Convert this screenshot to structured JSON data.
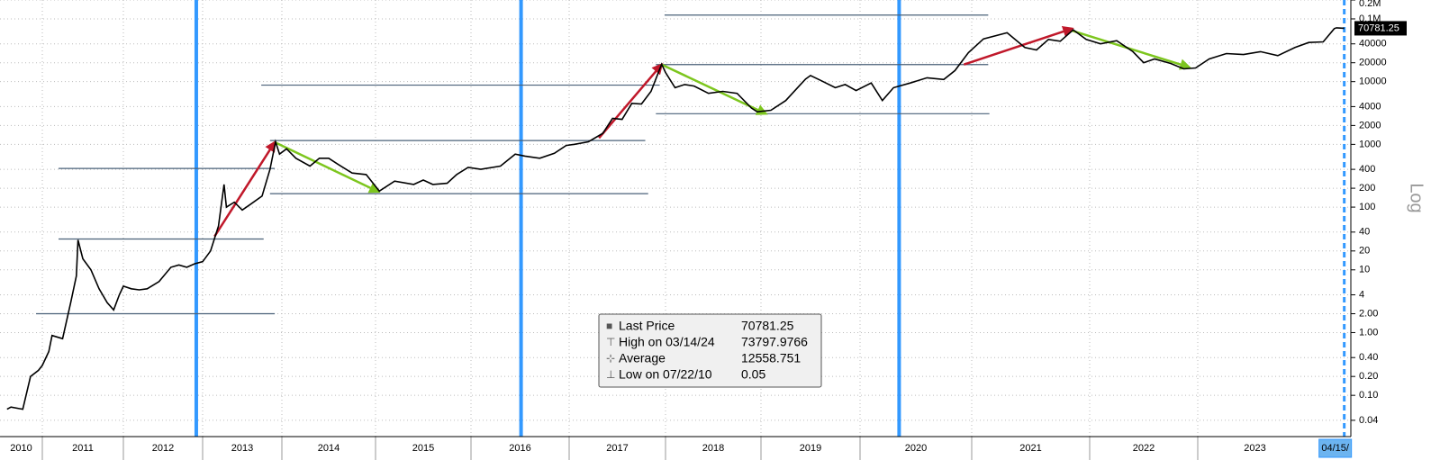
{
  "chart_data": {
    "type": "line",
    "log_scale": true,
    "grid": true,
    "x": [
      2010.55,
      2010.6,
      2010.75,
      2010.85,
      2010.95,
      2011.0,
      2011.08,
      2011.12,
      2011.25,
      2011.35,
      2011.42,
      2011.44,
      2011.5,
      2011.6,
      2011.7,
      2011.8,
      2011.88,
      2011.95,
      2012.0,
      2012.1,
      2012.2,
      2012.3,
      2012.45,
      2012.6,
      2012.7,
      2012.8,
      2012.9,
      2013.0,
      2013.1,
      2013.2,
      2013.27,
      2013.3,
      2013.4,
      2013.5,
      2013.6,
      2013.75,
      2013.85,
      2013.92,
      2013.97,
      2014.05,
      2014.15,
      2014.3,
      2014.4,
      2014.5,
      2014.6,
      2014.75,
      2014.9,
      2015.04,
      2015.2,
      2015.4,
      2015.5,
      2015.6,
      2015.75,
      2015.85,
      2015.97,
      2016.1,
      2016.3,
      2016.45,
      2016.55,
      2016.7,
      2016.85,
      2016.97,
      2017.05,
      2017.2,
      2017.35,
      2017.45,
      2017.55,
      2017.65,
      2017.75,
      2017.85,
      2017.96,
      2018.0,
      2018.1,
      2018.2,
      2018.3,
      2018.45,
      2018.6,
      2018.75,
      2018.9,
      2018.96,
      2019.1,
      2019.25,
      2019.45,
      2019.5,
      2019.6,
      2019.75,
      2019.85,
      2019.96,
      2020.1,
      2020.2,
      2020.3,
      2020.45,
      2020.6,
      2020.75,
      2020.85,
      2020.97,
      2021.1,
      2021.3,
      2021.45,
      2021.55,
      2021.65,
      2021.75,
      2021.86,
      2021.97,
      2022.1,
      2022.25,
      2022.4,
      2022.5,
      2022.6,
      2022.75,
      2022.87,
      2022.98,
      2023.1,
      2023.25,
      2023.4,
      2023.55,
      2023.7,
      2023.85,
      2023.97,
      2024.1,
      2024.2,
      2024.22,
      2024.29
    ],
    "series": [
      {
        "name": "Last Price",
        "color": "#000000",
        "values": [
          0.06,
          0.065,
          0.06,
          0.2,
          0.25,
          0.3,
          0.5,
          0.9,
          0.8,
          3,
          8,
          30,
          15,
          10,
          5,
          3,
          2.3,
          4,
          5.5,
          5,
          4.8,
          5,
          6.5,
          11,
          12,
          11,
          12.5,
          13.5,
          20,
          50,
          230,
          100,
          120,
          90,
          110,
          150,
          400,
          1100,
          700,
          850,
          600,
          450,
          600,
          600,
          480,
          350,
          330,
          180,
          260,
          230,
          270,
          230,
          240,
          330,
          430,
          400,
          450,
          700,
          650,
          600,
          720,
          960,
          1000,
          1100,
          1500,
          2600,
          2500,
          4500,
          4400,
          7000,
          19000,
          14000,
          8000,
          9000,
          8500,
          6500,
          7000,
          6500,
          3800,
          3300,
          3500,
          5000,
          11000,
          12500,
          10500,
          8000,
          9000,
          7200,
          9500,
          5000,
          8000,
          9500,
          11500,
          10800,
          15000,
          29000,
          48000,
          60000,
          35000,
          32000,
          47000,
          44000,
          67000,
          47000,
          40000,
          45000,
          30000,
          20000,
          23000,
          19500,
          16000,
          16500,
          23000,
          28000,
          27000,
          30000,
          26000,
          35000,
          42000,
          43000,
          70000,
          72000,
          70781.25
        ]
      }
    ],
    "xlim": [
      2010.46,
      2024.35
    ],
    "xticks": [
      2010,
      2011,
      2012,
      2013,
      2014,
      2015,
      2016,
      2017,
      2018,
      2019,
      2020,
      2021,
      2022,
      2023,
      {
        "value": 2024.29,
        "label": "04/15/"
      }
    ],
    "ylim": [
      0.022,
      200000
    ],
    "yticks": [
      {
        "value": 200000,
        "label": "0.2M"
      },
      {
        "value": 100000,
        "label": "0.1M"
      },
      40000,
      20000,
      10000,
      4000,
      2000,
      1000,
      400,
      200,
      100,
      40,
      20,
      10,
      4,
      {
        "value": 2,
        "label": "2.00"
      },
      {
        "value": 1,
        "label": "1.00"
      },
      {
        "value": 0.4,
        "label": "0.40"
      },
      {
        "value": 0.2,
        "label": "0.20"
      },
      {
        "value": 0.1,
        "label": "0.10"
      },
      0.04
    ],
    "y_axis_label": "Log",
    "halvings": {
      "color": "#3399ff",
      "x": [
        2012.92,
        2016.51,
        2020.35,
        2024.29
      ]
    },
    "levels": {
      "color": "#4a6078",
      "lines": [
        {
          "x": [
            2010.92,
            2013.91
          ],
          "y": 2
        },
        {
          "x": [
            2011.2,
            2013.77
          ],
          "y": 31
        },
        {
          "x": [
            2011.2,
            2013.91
          ],
          "y": 413
        },
        {
          "x": [
            2013.74,
            2017.94
          ],
          "y": 8800
        },
        {
          "x": [
            2013.85,
            2017.79
          ],
          "y": 1150
        },
        {
          "x": [
            2013.85,
            2017.82
          ],
          "y": 164
        },
        {
          "x": [
            2017.99,
            2021.14
          ],
          "y": 115000
        },
        {
          "x": [
            2017.9,
            2021.14
          ],
          "y": 18700
        },
        {
          "x": [
            2017.9,
            2021.15
          ],
          "y": 3080
        }
      ]
    },
    "arrows": [
      {
        "color": "#c0182a",
        "x": [
          2013.15,
          2013.91
        ],
        "y": [
          34,
          1080
        ]
      },
      {
        "color": "#c0182a",
        "x": [
          2017.31,
          2017.96
        ],
        "y": [
          1265,
          18700
        ]
      },
      {
        "color": "#c0182a",
        "x": [
          2020.93,
          2021.85
        ],
        "y": [
          18700,
          70000
        ]
      },
      {
        "color": "#7dc61e",
        "x": [
          2013.91,
          2015.03
        ],
        "y": [
          1080,
          176
        ]
      },
      {
        "color": "#7dc61e",
        "x": [
          2017.96,
          2019.05
        ],
        "y": [
          18700,
          3080
        ]
      },
      {
        "color": "#7dc61e",
        "x": [
          2021.85,
          2022.92
        ],
        "y": [
          65000,
          17000
        ]
      }
    ],
    "stats": [
      {
        "label": "High on 03/14/24",
        "value": 73797.9766
      },
      {
        "label": "Average",
        "value": 12558.751
      },
      {
        "label": "Low on 07/22/10",
        "value": 0.05
      }
    ]
  }
}
